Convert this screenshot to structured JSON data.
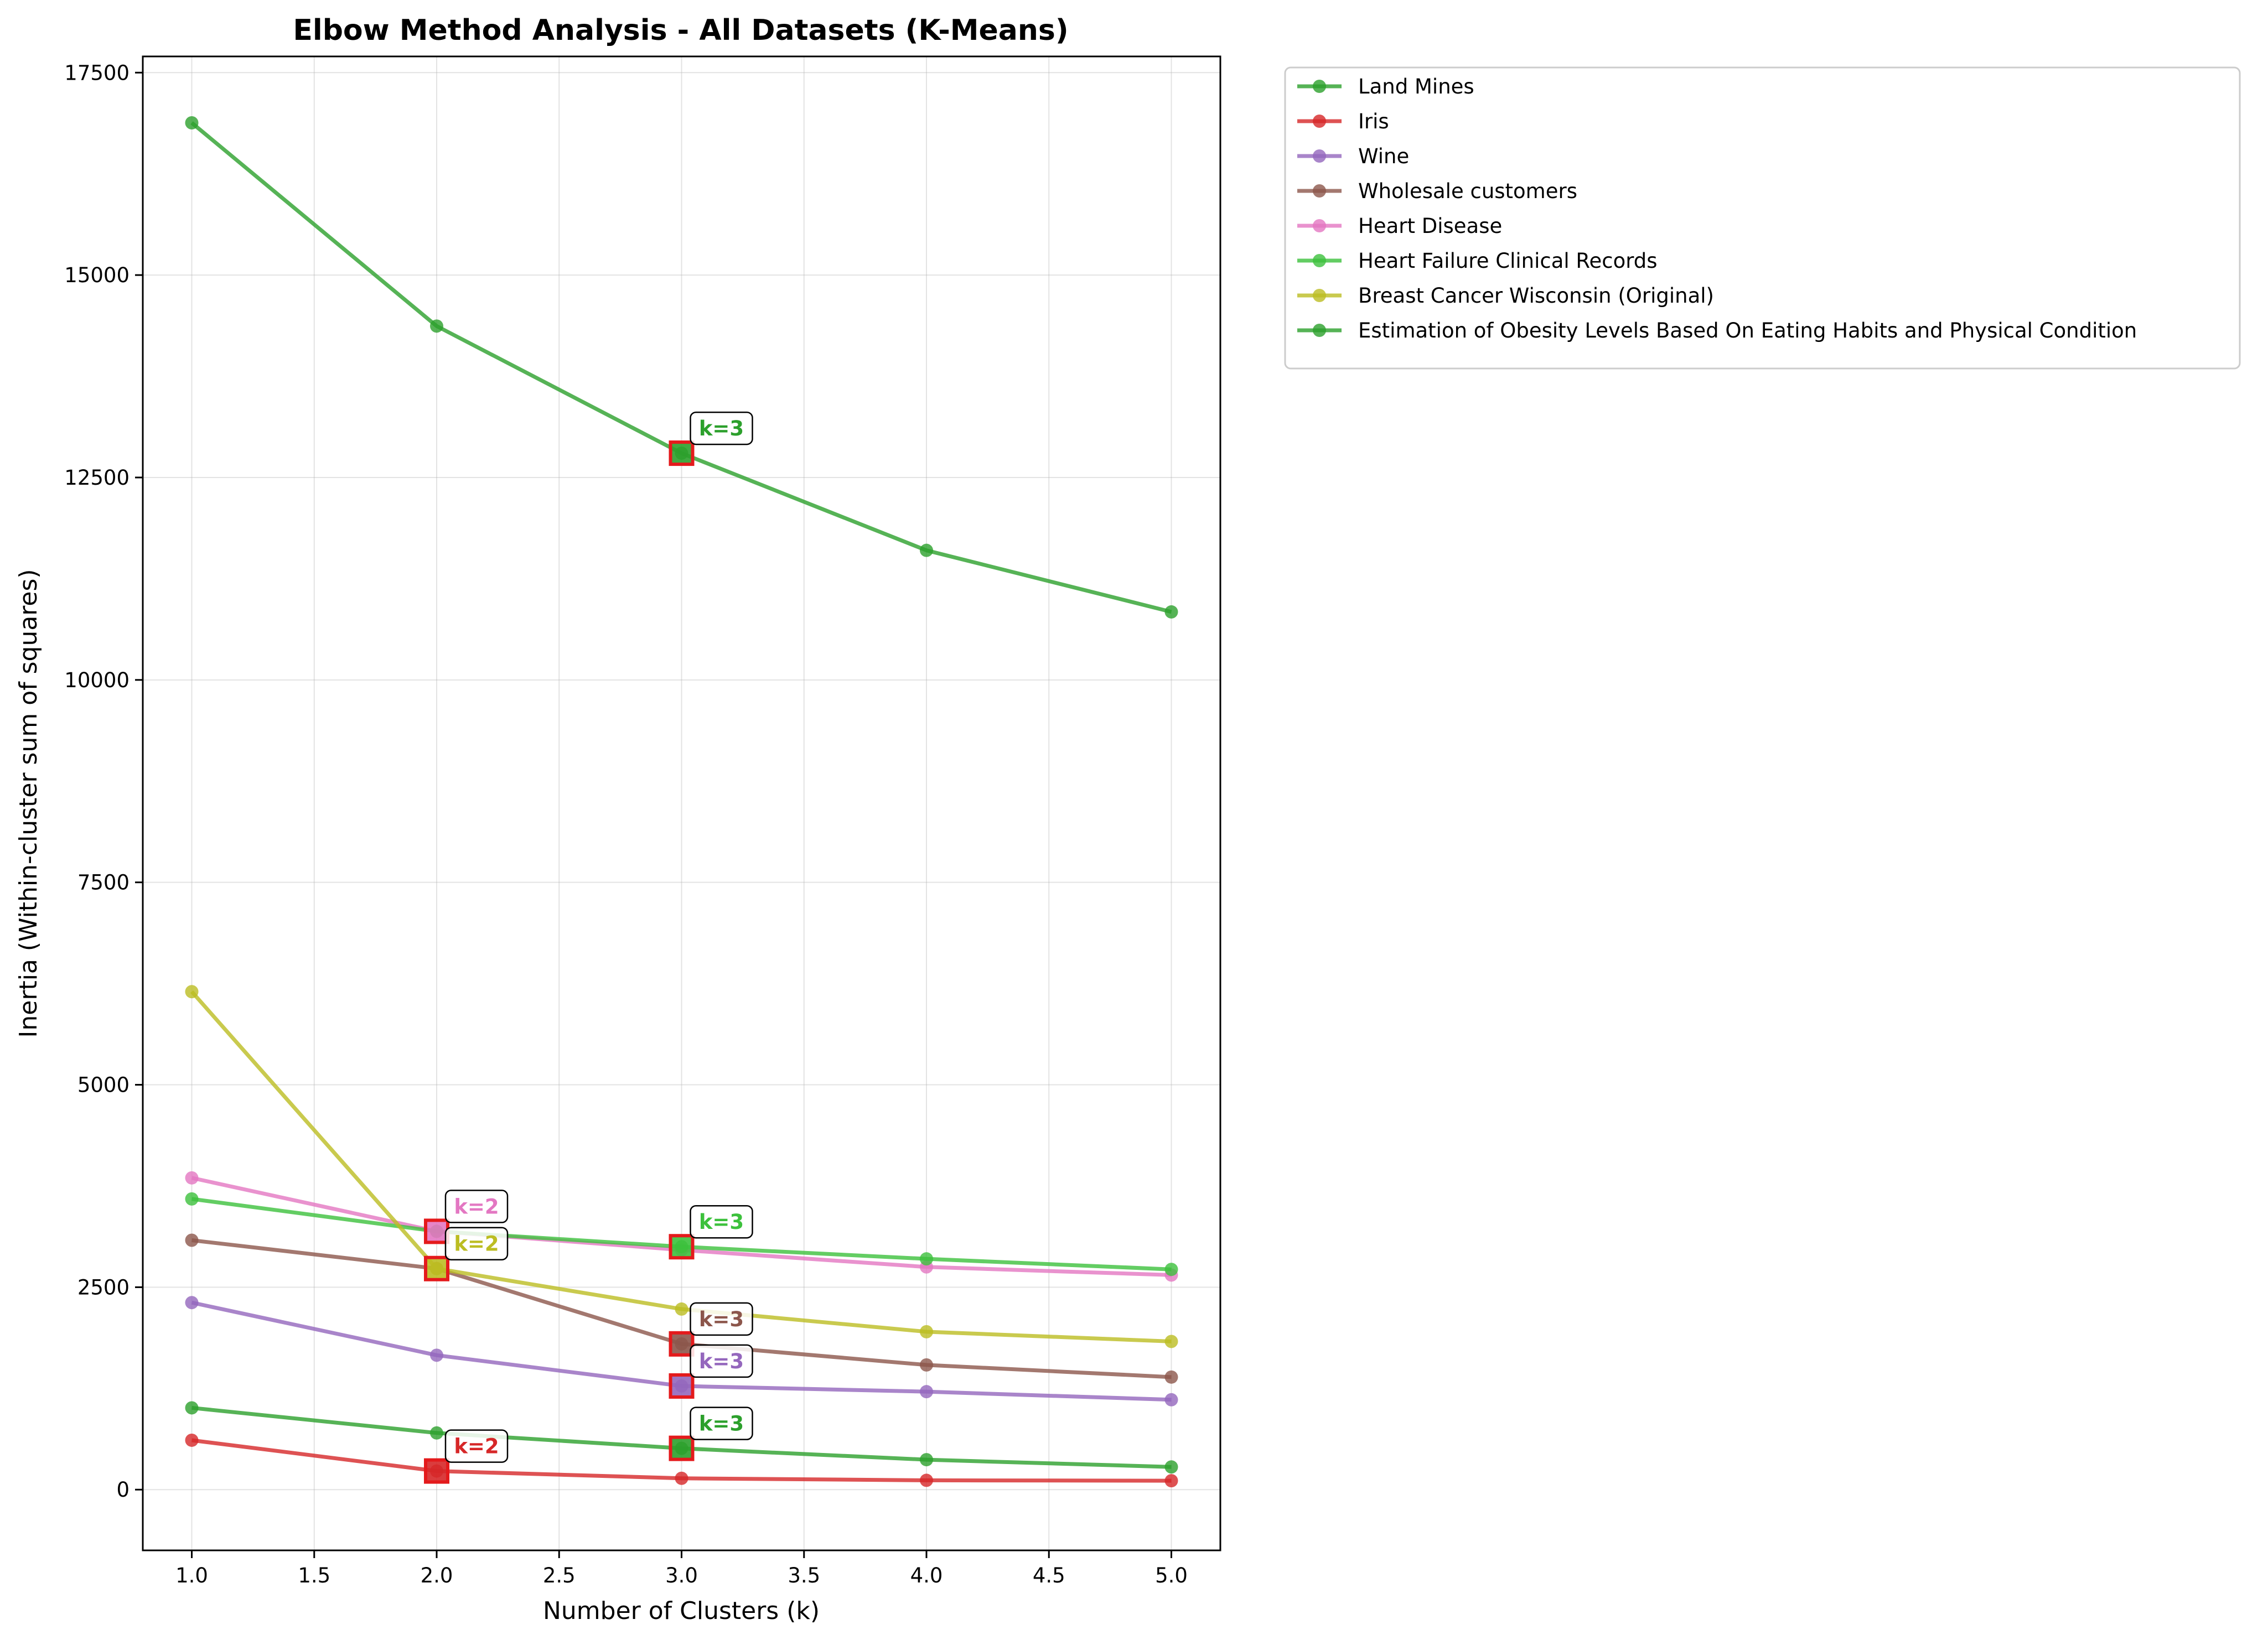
{
  "chart_data": {
    "type": "line",
    "title": "Elbow Method Analysis - All Datasets (K-Means)",
    "xlabel": "Number of Clusters (k)",
    "ylabel": "Inertia (Within-cluster sum of squares)",
    "xlim": [
      0.8,
      5.2
    ],
    "ylim": [
      -750,
      17700
    ],
    "x": [
      1,
      2,
      3,
      4,
      5
    ],
    "xticks": [
      1.0,
      1.5,
      2.0,
      2.5,
      3.0,
      3.5,
      4.0,
      4.5,
      5.0
    ],
    "xtick_labels": [
      "1.0",
      "1.5",
      "2.0",
      "2.5",
      "3.0",
      "3.5",
      "4.0",
      "4.5",
      "5.0"
    ],
    "yticks": [
      0,
      2500,
      5000,
      7500,
      10000,
      12500,
      15000,
      17500
    ],
    "ytick_labels": [
      "0",
      "2500",
      "5000",
      "7500",
      "10000",
      "12500",
      "15000",
      "17500"
    ],
    "grid": true,
    "legend_position": "outside-right-top",
    "optimal_marker": {
      "fill_opacity": 0.9,
      "edge_color": "#e41a1c"
    },
    "series": [
      {
        "name": "Land Mines",
        "color": "#2ca02c",
        "values": [
          1010,
          700,
          510,
          370,
          280
        ],
        "optimal_k": 3,
        "label": "k=3"
      },
      {
        "name": "Iris",
        "color": "#d62728",
        "values": [
          610,
          230,
          140,
          115,
          110
        ],
        "optimal_k": 2,
        "label": "k=2"
      },
      {
        "name": "Wine",
        "color": "#9467bd",
        "values": [
          2310,
          1660,
          1280,
          1210,
          1110
        ],
        "optimal_k": 3,
        "label": "k=3"
      },
      {
        "name": "Wholesale customers",
        "color": "#8c564b",
        "values": [
          3080,
          2730,
          1800,
          1540,
          1390
        ],
        "optimal_k": 3,
        "label": "k=3"
      },
      {
        "name": "Heart Disease",
        "color": "#e377c2",
        "values": [
          3850,
          3190,
          2960,
          2750,
          2650
        ],
        "optimal_k": 2,
        "label": "k=2"
      },
      {
        "name": "Heart Failure Clinical Records",
        "color": "#3cc13c",
        "values": [
          3590,
          3190,
          3000,
          2850,
          2720
        ],
        "optimal_k": 3,
        "label": "k=3"
      },
      {
        "name": "Breast Cancer Wisconsin (Original)",
        "color": "#bcbd22",
        "values": [
          6150,
          2730,
          2230,
          1950,
          1830
        ],
        "optimal_k": 2,
        "label": "k=2"
      },
      {
        "name": "Estimation of Obesity Levels Based On Eating Habits and Physical Condition",
        "color": "#2ca02c",
        "values": [
          16880,
          14370,
          12800,
          11600,
          10840
        ],
        "optimal_k": 3,
        "label": "k=3"
      }
    ]
  }
}
